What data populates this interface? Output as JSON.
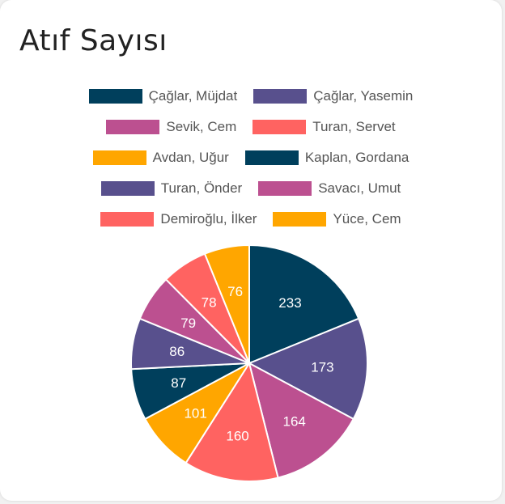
{
  "card": {
    "title": "Atıf Sayısı"
  },
  "chart_data": {
    "type": "pie",
    "title": "Atıf Sayısı",
    "legend_placement": "top",
    "categories": [
      "Çağlar, Müjdat",
      "Çağlar, Yasemin",
      "Sevik, Cem",
      "Turan, Servet",
      "Avdan, Uğur",
      "Kaplan, Gordana",
      "Turan, Önder",
      "Savacı, Umut",
      "Demiroğlu, İlker",
      "Yüce, Cem"
    ],
    "values": [
      233,
      173,
      164,
      160,
      101,
      87,
      86,
      79,
      78,
      76
    ],
    "colors": [
      "#003f5c",
      "#58508d",
      "#bc5090",
      "#ff6361",
      "#ffa600",
      "#003f5c",
      "#58508d",
      "#bc5090",
      "#ff6361",
      "#ffa600"
    ]
  }
}
